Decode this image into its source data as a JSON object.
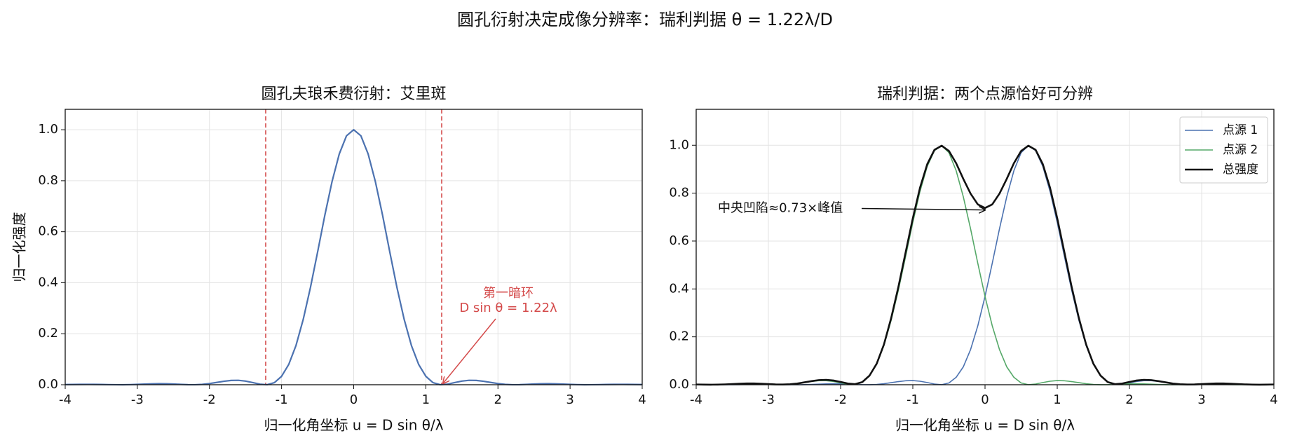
{
  "title": "圆孔衍射决定成像分辨率：瑞利判据 θ = 1.22λ/D",
  "chart_data": [
    {
      "type": "line",
      "title": "圆孔夫琅禾费衍射：艾里斑",
      "xlabel": "归一化角坐标 u = D sin θ/λ",
      "ylabel": "归一化强度",
      "x": [
        -4,
        -3.9,
        -3.8,
        -3.7,
        -3.6,
        -3.5,
        -3.4,
        -3.3,
        -3.2,
        -3.1,
        -3,
        -2.9,
        -2.8,
        -2.7,
        -2.6,
        -2.5,
        -2.4,
        -2.3,
        -2.2,
        -2.1,
        -2,
        -1.9,
        -1.8,
        -1.7,
        -1.6,
        -1.5,
        -1.4,
        -1.3,
        -1.2,
        -1.1,
        -1,
        -0.9,
        -0.8,
        -0.7,
        -0.6,
        -0.5,
        -0.4,
        -0.3,
        -0.2,
        -0.1,
        0,
        0.1,
        0.2,
        0.3,
        0.4,
        0.5,
        0.6,
        0.7,
        0.8,
        0.9,
        1,
        1.1,
        1.2,
        1.3,
        1.4,
        1.5,
        1.6,
        1.7,
        1.8,
        1.9,
        2,
        2.1,
        2.2,
        2.3,
        2.4,
        2.5,
        2.6,
        2.7,
        2.8,
        2.9,
        3,
        3.1,
        3.2,
        3.3,
        3.4,
        3.5,
        3.6,
        3.7,
        3.8,
        3.9,
        4
      ],
      "values": [
        0.0006,
        0.0011,
        0.0014,
        0.0016,
        0.0014,
        0.001,
        0.0005,
        0.0001,
        0,
        0.0005,
        0.0014,
        0.0026,
        0.0036,
        0.0041,
        0.0039,
        0.0029,
        0.0015,
        0.0003,
        0.0001,
        0.0015,
        0.0046,
        0.009,
        0.0136,
        0.0168,
        0.0173,
        0.0143,
        0.0085,
        0.0023,
        0.0002,
        0.0081,
        0.033,
        0.08,
        0.154,
        0.256,
        0.381,
        0.521,
        0.665,
        0.797,
        0.905,
        0.976,
        1,
        0.976,
        0.905,
        0.797,
        0.665,
        0.521,
        0.381,
        0.256,
        0.154,
        0.08,
        0.033,
        0.0081,
        0.0002,
        0.0023,
        0.0085,
        0.0143,
        0.0173,
        0.0168,
        0.0136,
        0.009,
        0.0046,
        0.0015,
        0.0001,
        0.0003,
        0.0015,
        0.0029,
        0.0039,
        0.0041,
        0.0036,
        0.0026,
        0.0014,
        0.0005,
        0,
        0.0001,
        0.0005,
        0.001,
        0.0014,
        0.0016,
        0.0014,
        0.0011,
        0.0006
      ],
      "color": "#4c72b0",
      "vlines": [
        -1.22,
        1.22
      ],
      "vline_color": "#d44a4a",
      "annotation": {
        "text": [
          "第一暗环",
          "D sin θ = 1.22λ"
        ],
        "xy": [
          1.22,
          0
        ],
        "color": "#d44a4a"
      },
      "xlim": [
        -4,
        4
      ],
      "xticks": [
        -4,
        -3,
        -2,
        -1,
        0,
        1,
        2,
        3,
        4
      ],
      "ylim": [
        0,
        1.08
      ],
      "yticks": [
        {
          "value": 0,
          "label": "0.0"
        },
        0.2,
        0.4,
        0.6,
        0.8,
        {
          "value": 1,
          "label": "1.0"
        }
      ],
      "grid": true
    },
    {
      "type": "line",
      "title": "瑞利判据：两个点源恰好可分辨",
      "xlabel": "归一化角坐标 u = D sin θ/λ",
      "x": [
        -4,
        -3.9,
        -3.8,
        -3.7,
        -3.6,
        -3.5,
        -3.4,
        -3.3,
        -3.2,
        -3.1,
        -3,
        -2.9,
        -2.8,
        -2.7,
        -2.6,
        -2.5,
        -2.4,
        -2.3,
        -2.2,
        -2.1,
        -2,
        -1.9,
        -1.8,
        -1.7,
        -1.6,
        -1.5,
        -1.4,
        -1.3,
        -1.2,
        -1.1,
        -1,
        -0.9,
        -0.8,
        -0.7,
        -0.6,
        -0.5,
        -0.4,
        -0.3,
        -0.2,
        -0.1,
        0,
        0.1,
        0.2,
        0.3,
        0.4,
        0.5,
        0.6,
        0.7,
        0.8,
        0.9,
        1,
        1.1,
        1.2,
        1.3,
        1.4,
        1.5,
        1.6,
        1.7,
        1.8,
        1.9,
        2,
        2.1,
        2.2,
        2.3,
        2.4,
        2.5,
        2.6,
        2.7,
        2.8,
        2.9,
        3,
        3.1,
        3.2,
        3.3,
        3.4,
        3.5,
        3.6,
        3.7,
        3.8,
        3.9,
        4
      ],
      "series": [
        {
          "name": "点源 1",
          "color": "#4c72b0",
          "values": [
            0.0006,
            0.0004,
            0.0002,
            0,
            0,
            0.0002,
            0.0006,
            0.0011,
            0.0014,
            0.0016,
            0.0014,
            0.001,
            0.0006,
            0.0001,
            0,
            0.0005,
            0.0013,
            0.0025,
            0.0035,
            0.0041,
            0.0039,
            0.003,
            0.0016,
            0.0004,
            0.0001,
            0.0014,
            0.0043,
            0.0086,
            0.0131,
            0.0165,
            0.0173,
            0.0146,
            0.0091,
            0.0029,
            0.0004,
            0.0073,
            0.031,
            0.075,
            0.147,
            0.246,
            0.369,
            0.507,
            0.651,
            0.784,
            0.894,
            0.969,
            0.998,
            0.978,
            0.912,
            0.808,
            0.678,
            0.535,
            0.395,
            0.269,
            0.164,
            0.087,
            0.038,
            0.0106,
            0.001,
            0.0021,
            0.0079,
            0.0137,
            0.017,
            0.0169,
            0.0139,
            0.0095,
            0.005,
            0.0018,
            0.0002,
            0.0003,
            0.0014,
            0.0028,
            0.0038,
            0.0041,
            0.0037,
            0.0027,
            0.0015,
            0.0006,
            0.0001,
            0.0001,
            0.0005
          ]
        },
        {
          "name": "点源 2",
          "color": "#55a868",
          "values": [
            0.0005,
            0.0001,
            0.0001,
            0.0006,
            0.0015,
            0.0027,
            0.0037,
            0.0041,
            0.0038,
            0.0028,
            0.0014,
            0.0003,
            0.0002,
            0.0018,
            0.005,
            0.0095,
            0.0139,
            0.0169,
            0.017,
            0.0137,
            0.0079,
            0.0021,
            0.001,
            0.0106,
            0.038,
            0.087,
            0.164,
            0.269,
            0.395,
            0.535,
            0.678,
            0.808,
            0.912,
            0.978,
            0.998,
            0.969,
            0.894,
            0.784,
            0.651,
            0.507,
            0.369,
            0.246,
            0.147,
            0.075,
            0.031,
            0.0073,
            0.0004,
            0.0029,
            0.0091,
            0.0146,
            0.0173,
            0.0165,
            0.0131,
            0.0086,
            0.0043,
            0.0014,
            0.0001,
            0.0004,
            0.0016,
            0.003,
            0.0039,
            0.0041,
            0.0035,
            0.0025,
            0.0013,
            0.0005,
            0,
            0.0001,
            0.0006,
            0.001,
            0.0014,
            0.0016,
            0.0014,
            0.0011,
            0.0006,
            0.0002,
            0,
            0,
            0.0002,
            0.0004,
            0.0006
          ]
        },
        {
          "name": "总强度",
          "color": "#111111",
          "values": [
            0.0011,
            0.0005,
            0.0003,
            0.0006,
            0.0015,
            0.0029,
            0.0043,
            0.0052,
            0.0052,
            0.0044,
            0.0028,
            0.0013,
            0.0008,
            0.0019,
            0.005,
            0.01,
            0.0152,
            0.0194,
            0.0205,
            0.0178,
            0.0118,
            0.0051,
            0.0026,
            0.011,
            0.038,
            0.088,
            0.168,
            0.278,
            0.408,
            0.552,
            0.695,
            0.823,
            0.921,
            0.981,
            0.998,
            0.976,
            0.925,
            0.859,
            0.798,
            0.753,
            0.738,
            0.753,
            0.798,
            0.859,
            0.925,
            0.976,
            0.998,
            0.981,
            0.921,
            0.823,
            0.695,
            0.552,
            0.408,
            0.278,
            0.168,
            0.088,
            0.038,
            0.011,
            0.0026,
            0.0051,
            0.0118,
            0.0178,
            0.0205,
            0.0194,
            0.0152,
            0.01,
            0.005,
            0.0019,
            0.0008,
            0.0013,
            0.0028,
            0.0044,
            0.0052,
            0.0052,
            0.0043,
            0.0029,
            0.0015,
            0.0006,
            0.0003,
            0.0005,
            0.0011
          ]
        }
      ],
      "annotation": {
        "text": "中央凹陷≈0.73×峰值",
        "xy": [
          0,
          0.73
        ],
        "color": "#111111"
      },
      "legend": "upper right",
      "xlim": [
        -4,
        4
      ],
      "xticks": [
        -4,
        -3,
        -2,
        -1,
        0,
        1,
        2,
        3,
        4
      ],
      "ylim": [
        0,
        1.15
      ],
      "yticks": [
        {
          "value": 0,
          "label": "0.0"
        },
        0.2,
        0.4,
        0.6,
        0.8,
        {
          "value": 1,
          "label": "1.0"
        }
      ],
      "grid": true
    }
  ]
}
